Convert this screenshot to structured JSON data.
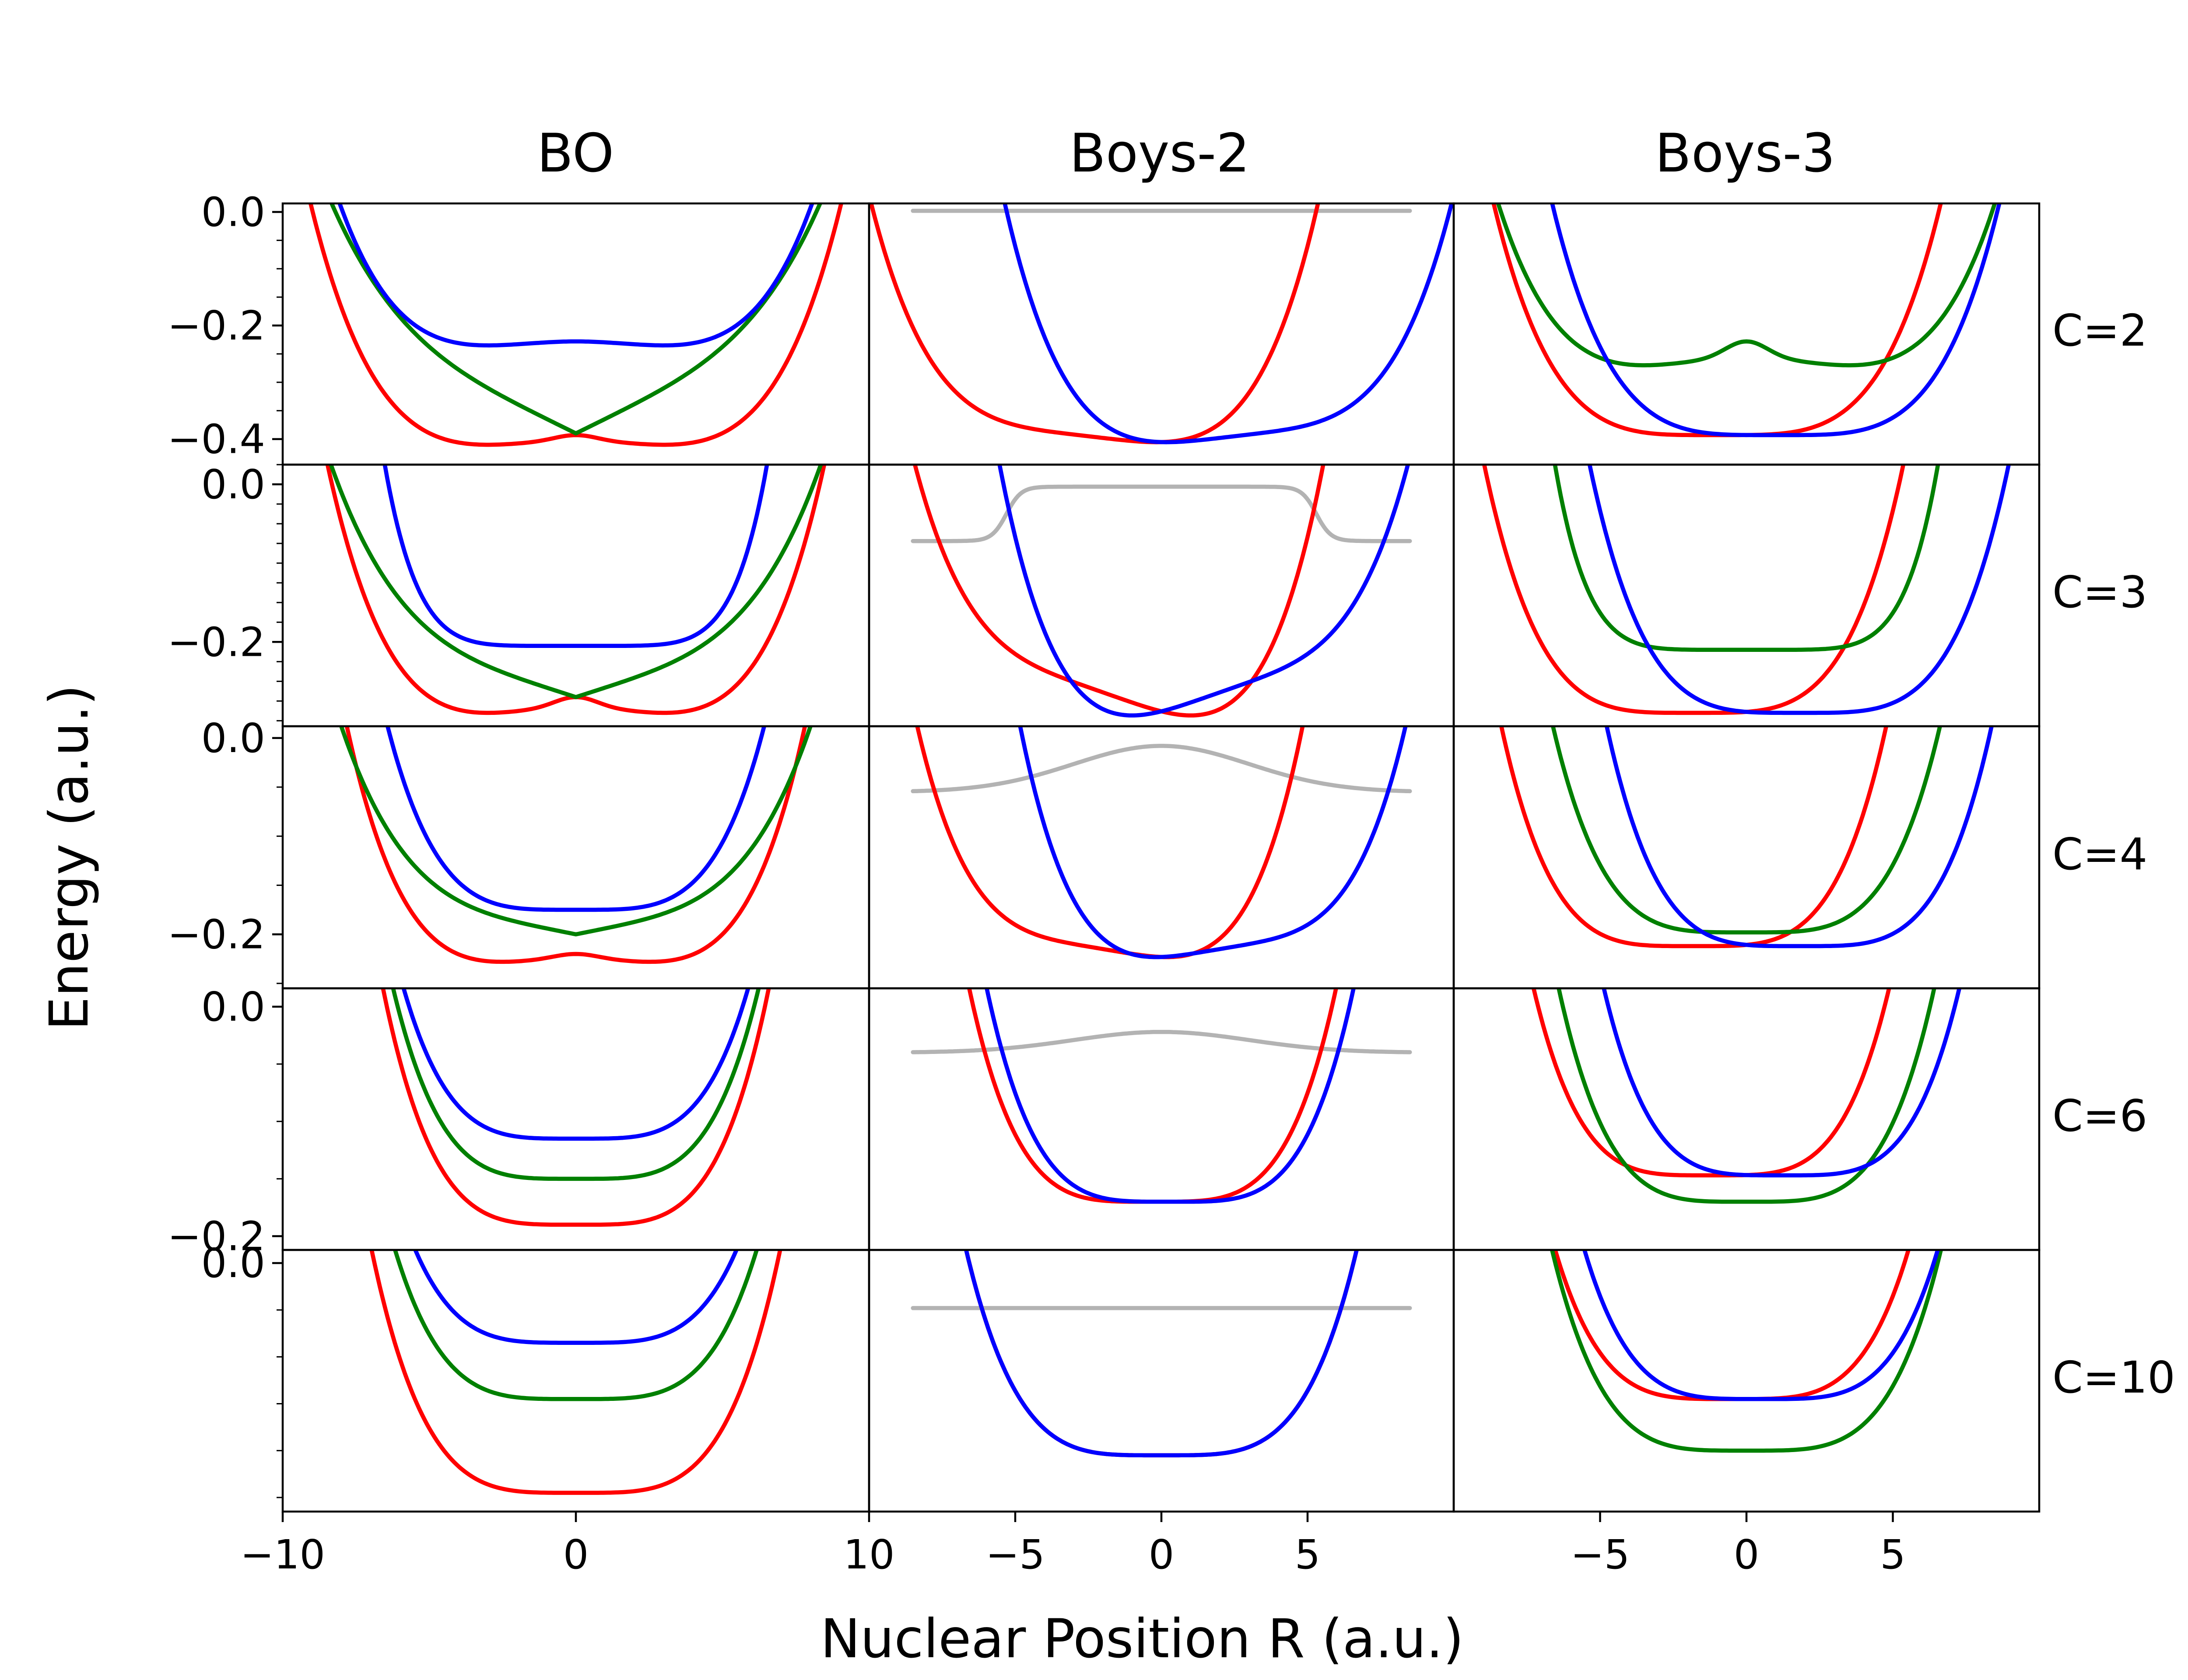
{
  "chart_data": {
    "type": "line",
    "layout": "grid 5 rows x 3 columns",
    "xlabel": "Nuclear Position R (a.u.)",
    "ylabel": "Energy (a.u.)",
    "columns": [
      "BO",
      "Boys-2",
      "Boys-3"
    ],
    "rows": [
      "C=2",
      "C=3",
      "C=4",
      "C=6",
      "C=10"
    ],
    "x_ticks_col1": [
      "−10",
      "0",
      "10"
    ],
    "x_ticks_col2": [
      "−5",
      "0",
      "5"
    ],
    "x_ticks_col3": [
      "−5",
      "0",
      "5"
    ],
    "col_xlim": [
      [
        -10,
        10
      ],
      [
        -10,
        10
      ],
      [
        -10,
        10
      ]
    ],
    "row_ylim": [
      [
        -0.445,
        0.015
      ],
      [
        -0.307,
        0.025
      ],
      [
        -0.255,
        0.012
      ],
      [
        -0.212,
        0.016
      ],
      [
        -0.265,
        0.014
      ]
    ],
    "y_ticks": [
      {
        "values": [
          0.0,
          -0.2,
          -0.4
        ],
        "labels": [
          "0.0",
          "−0.2",
          "−0.4"
        ]
      },
      {
        "values": [
          0.0,
          -0.2
        ],
        "labels": [
          "0.0",
          "−0.2"
        ]
      },
      {
        "values": [
          0.0,
          -0.2
        ],
        "labels": [
          "0.0",
          "−0.2"
        ]
      },
      {
        "values": [
          0.0,
          -0.2
        ],
        "labels": [
          "0.0",
          "−0.2"
        ]
      },
      {
        "values": [
          0.0
        ],
        "labels": [
          "0.0"
        ]
      }
    ],
    "series_colors": {
      "red": "#ff0000",
      "green": "#008000",
      "blue": "#0000ff",
      "gray": "#b3b3b3"
    },
    "panels": [
      [
        {
          "red": {
            "type": "double",
            "min": -0.41,
            "a": 3,
            "center": -0.393
          },
          "green": {
            "type": "v",
            "e0": -0.39,
            "slope": 0.0255
          },
          "blue": {
            "type": "double",
            "min": -0.235,
            "a": 3,
            "center": -0.228
          }
        },
        {
          "red": {
            "type": "ushift",
            "min": -0.41,
            "shift": -2.5,
            "tilt": -0.006
          },
          "blue": {
            "type": "ushift",
            "min": -0.41,
            "shift": 2.5,
            "tilt": 0.006
          },
          "gray": {
            "type": "flat",
            "e": 0.002
          }
        },
        {
          "red": {
            "type": "ushift",
            "min": -0.393,
            "shift": -1.0
          },
          "blue": {
            "type": "ushift",
            "min": -0.393,
            "shift": 1.0
          },
          "green": {
            "type": "double",
            "min": -0.27,
            "a": 3.5,
            "center": -0.228
          }
        }
      ],
      [
        {
          "red": {
            "type": "double",
            "min": -0.29,
            "a": 3,
            "center": -0.27
          },
          "green": {
            "type": "v",
            "e0": -0.27,
            "slope": 0.012
          },
          "blue": {
            "type": "flatbottom",
            "e0": -0.205
          }
        },
        {
          "red": {
            "type": "ushift",
            "min": -0.29,
            "shift": -2.0,
            "tilt": -0.013
          },
          "blue": {
            "type": "ushift",
            "min": -0.29,
            "shift": 2.0,
            "tilt": 0.013
          },
          "gray": {
            "type": "step",
            "top": -0.003,
            "side": -0.072
          }
        },
        {
          "red": {
            "type": "ushift",
            "min": -0.29,
            "shift": -1.8
          },
          "blue": {
            "type": "ushift",
            "min": -0.29,
            "shift": 1.8
          },
          "green": {
            "type": "flatbottom",
            "e0": -0.21
          }
        }
      ],
      [
        {
          "red": {
            "type": "double",
            "min": -0.228,
            "a": 2.5,
            "center": -0.22
          },
          "green": {
            "type": "v",
            "e0": -0.2,
            "slope": 0.006
          },
          "blue": {
            "type": "u",
            "min": -0.175
          }
        },
        {
          "red": {
            "type": "ushift",
            "min": -0.225,
            "shift": -2.0,
            "tilt": -0.005
          },
          "blue": {
            "type": "ushift",
            "min": -0.225,
            "shift": 2.0,
            "tilt": 0.005
          },
          "gray": {
            "type": "bump",
            "top": -0.008,
            "side": -0.055
          }
        },
        {
          "red": {
            "type": "ushift",
            "min": -0.212,
            "shift": -1.8
          },
          "blue": {
            "type": "ushift",
            "min": -0.212,
            "shift": 1.8
          },
          "green": {
            "type": "u",
            "min": -0.198
          }
        }
      ],
      [
        {
          "red": {
            "type": "u",
            "min": -0.19
          },
          "green": {
            "type": "u",
            "min": -0.15
          },
          "blue": {
            "type": "u",
            "min": -0.115
          }
        },
        {
          "red": {
            "type": "ushift",
            "min": -0.17,
            "shift": -0.3
          },
          "blue": {
            "type": "ushift",
            "min": -0.17,
            "shift": 0.3
          },
          "gray": {
            "type": "bump",
            "top": -0.022,
            "side": -0.04
          }
        },
        {
          "red": {
            "type": "ushift",
            "min": -0.147,
            "shift": -1.2
          },
          "blue": {
            "type": "ushift",
            "min": -0.147,
            "shift": 1.2
          },
          "green": {
            "type": "u",
            "min": -0.17
          }
        }
      ],
      [
        {
          "red": {
            "type": "u",
            "min": -0.245
          },
          "green": {
            "type": "u",
            "min": -0.145
          },
          "blue": {
            "type": "u",
            "min": -0.085
          }
        },
        {
          "red": {
            "type": "u",
            "min": -0.205
          },
          "blue": {
            "type": "u",
            "min": -0.205
          },
          "gray": {
            "type": "flat",
            "e": -0.048
          }
        },
        {
          "red": {
            "type": "ushift",
            "min": -0.145,
            "shift": -0.5
          },
          "blue": {
            "type": "ushift",
            "min": -0.145,
            "shift": 0.5
          },
          "green": {
            "type": "u",
            "min": -0.2
          }
        }
      ]
    ]
  }
}
